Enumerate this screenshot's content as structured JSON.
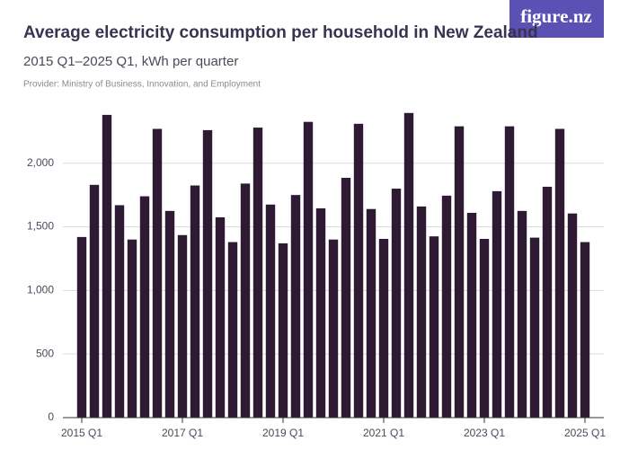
{
  "brand": "figure.nz",
  "chart_data": {
    "type": "bar",
    "title": "Average electricity consumption per household in New Zealand",
    "subtitle": "2015 Q1–2025 Q1, kWh per quarter",
    "provider": "Provider: Ministry of Business, Innovation, and Employment",
    "categories": [
      "2015 Q1",
      null,
      null,
      null,
      null,
      null,
      null,
      null,
      "2017 Q1",
      null,
      null,
      null,
      null,
      null,
      null,
      null,
      "2019 Q1",
      null,
      null,
      null,
      null,
      null,
      null,
      null,
      "2021 Q1",
      null,
      null,
      null,
      null,
      null,
      null,
      null,
      "2023 Q1",
      null,
      null,
      null,
      null,
      null,
      null,
      null,
      "2025 Q1"
    ],
    "values": [
      1420,
      1830,
      2380,
      1670,
      1400,
      1740,
      2270,
      1625,
      1435,
      1825,
      2260,
      1575,
      1380,
      1840,
      2280,
      1675,
      1370,
      1750,
      2325,
      1645,
      1400,
      1885,
      2310,
      1640,
      1405,
      1800,
      2395,
      1660,
      1425,
      1745,
      2290,
      1610,
      1405,
      1780,
      2290,
      1625,
      1415,
      1815,
      2270,
      1605,
      1380
    ],
    "color": "#2e1a33",
    "ylim": [
      0,
      2450
    ],
    "yticks": [
      0,
      500,
      {
        "value": 1000,
        "label": "1,000"
      },
      {
        "value": 1500,
        "label": "1,500"
      },
      {
        "value": 2000,
        "label": "2,000"
      }
    ],
    "grid": true
  }
}
